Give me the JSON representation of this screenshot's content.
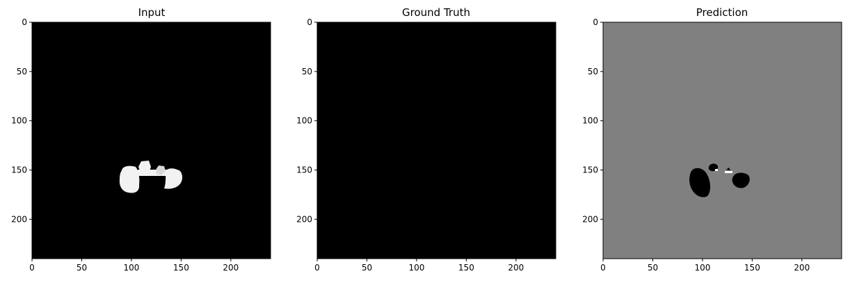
{
  "figure": {
    "background": "#ffffff",
    "panels": [
      {
        "title": "Input",
        "background": "#000000",
        "x_ticks": [
          "0",
          "50",
          "100",
          "150",
          "200"
        ],
        "y_ticks": [
          "0",
          "50",
          "100",
          "150",
          "200"
        ],
        "x_range": [
          0,
          240
        ],
        "y_range": [
          0,
          240
        ]
      },
      {
        "title": "Ground Truth",
        "background": "#000000",
        "x_ticks": [
          "0",
          "50",
          "100",
          "150",
          "200"
        ],
        "y_ticks": [
          "0",
          "50",
          "100",
          "150",
          "200"
        ],
        "x_range": [
          0,
          240
        ],
        "y_range": [
          0,
          240
        ]
      },
      {
        "title": "Prediction",
        "background": "#808080",
        "x_ticks": [
          "0",
          "50",
          "100",
          "150",
          "200"
        ],
        "y_ticks": [
          "0",
          "50",
          "100",
          "150",
          "200"
        ],
        "x_range": [
          0,
          240
        ],
        "y_range": [
          0,
          240
        ]
      }
    ],
    "colors": {
      "white_region": "#f2f2f2",
      "black_region": "#000000",
      "gray_region": "#808080"
    }
  }
}
